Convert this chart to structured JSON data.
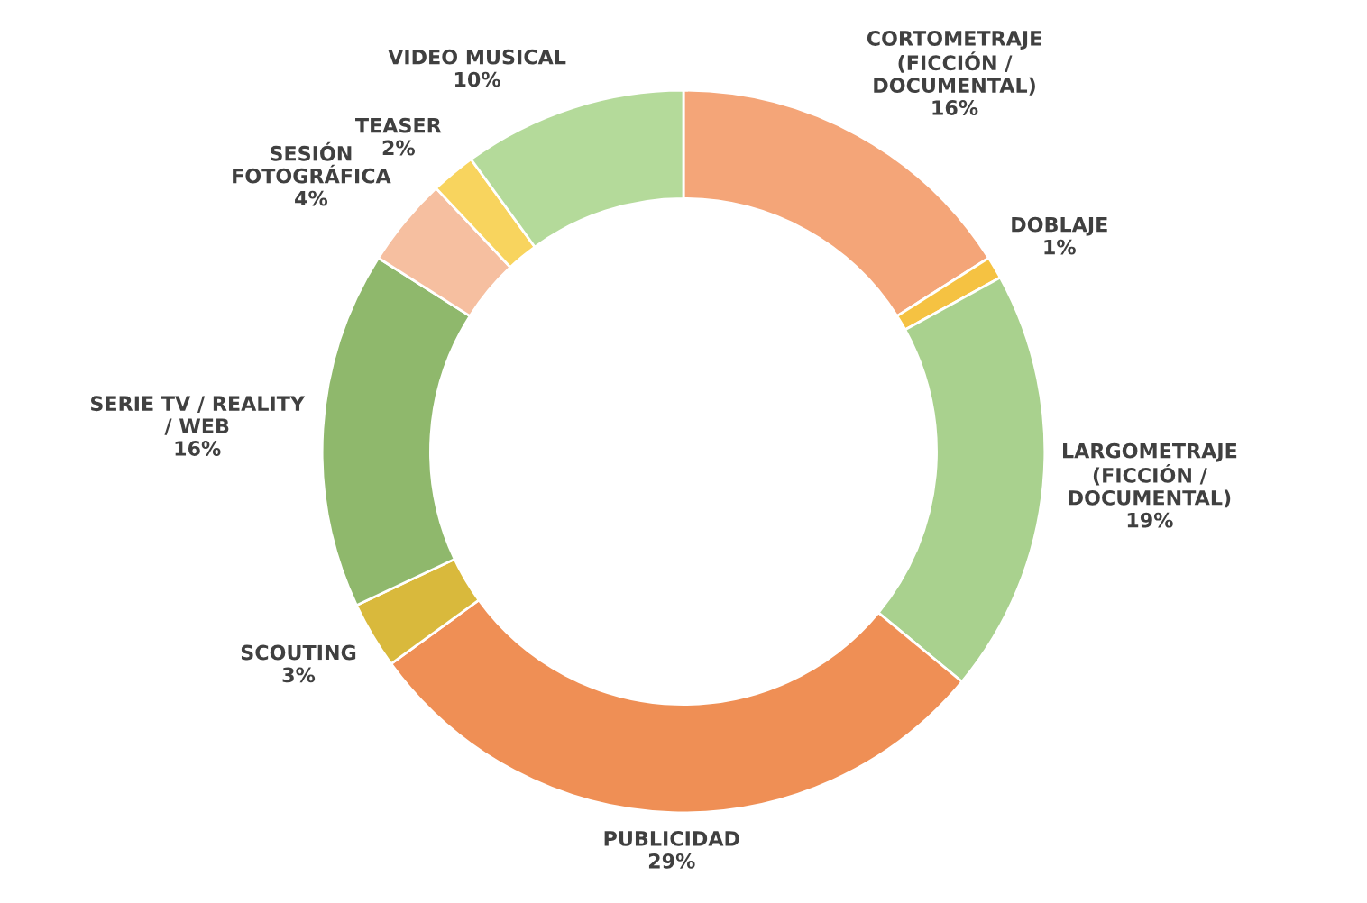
{
  "chart_data": {
    "type": "donut",
    "categories": [
      "CORTOMETRAJE\n(FICCIÓN /\nDOCUMENTAL)",
      "DOBLAJE",
      "LARGOMETRAJE\n(FICCIÓN /\nDOCUMENTAL)",
      "PUBLICIDAD",
      "SCOUTING",
      "SERIE TV / REALITY\n/ WEB",
      "SESIÓN\nFOTOGRÁFICA",
      "TEASER",
      "VIDEO MUSICAL"
    ],
    "values": [
      16,
      1,
      19,
      29,
      3,
      16,
      4,
      2,
      10
    ],
    "value_labels": [
      "16%",
      "1%",
      "19%",
      "29%",
      "3%",
      "16%",
      "4%",
      "2%",
      "10%"
    ],
    "colors": [
      "#f4a578",
      "#f5c242",
      "#a9d18e",
      "#ef8f55",
      "#d9b93c",
      "#8fb86c",
      "#f6bfa0",
      "#f8d45e",
      "#b4da9a"
    ],
    "legend": false
  }
}
